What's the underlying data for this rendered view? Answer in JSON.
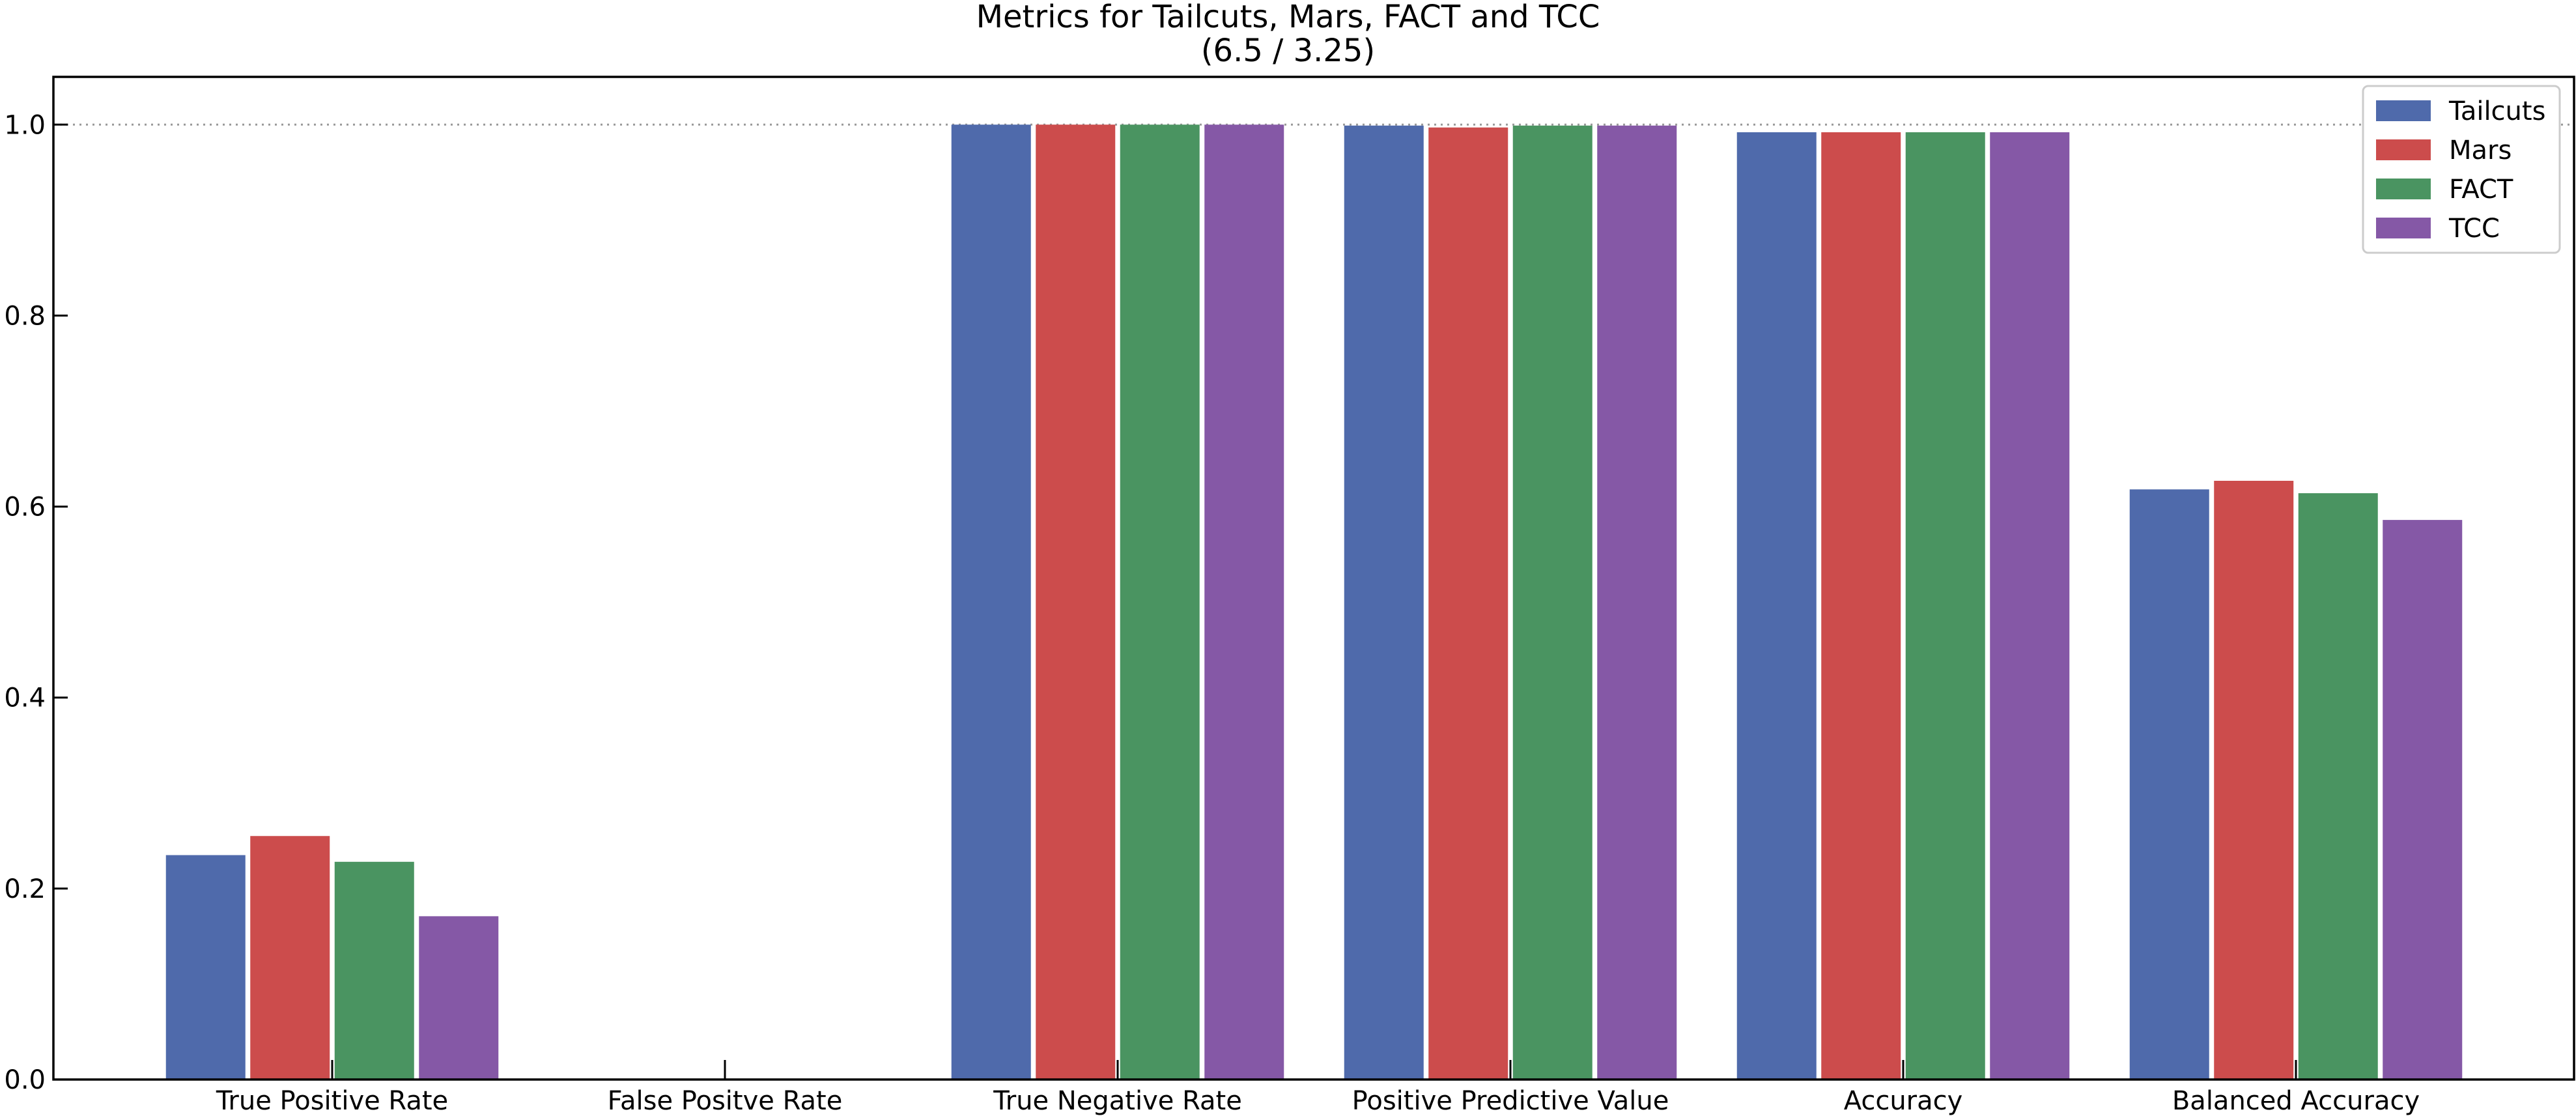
{
  "chart_data": {
    "type": "bar",
    "title": "Metrics for Tailcuts, Mars, FACT and TCC",
    "subtitle": "(6.5 / 3.25)",
    "xlabel": "",
    "ylabel": "",
    "ylim": [
      0,
      1.05
    ],
    "yticks": [
      "0.0",
      "0.2",
      "0.4",
      "0.6",
      "0.8",
      "1.0"
    ],
    "ytick_values": [
      0,
      0.2,
      0.4,
      0.6,
      0.8,
      1.0
    ],
    "reference_line": 1.0,
    "grid": false,
    "legend_position": "top-right",
    "categories": [
      "True Positive Rate",
      "False Positve Rate",
      "True Negative Rate",
      "Positive Predictive Value",
      "Accuracy",
      "Balanced Accuracy"
    ],
    "series": [
      {
        "name": "Tailcuts",
        "color": "#4f6aab",
        "values": [
          0.235,
          0.0,
          1.0,
          0.999,
          0.992,
          0.618
        ]
      },
      {
        "name": "Mars",
        "color": "#cc4c4c",
        "values": [
          0.255,
          0.0,
          1.0,
          0.997,
          0.992,
          0.627
        ]
      },
      {
        "name": "FACT",
        "color": "#4a9461",
        "values": [
          0.228,
          0.0,
          1.0,
          0.999,
          0.992,
          0.614
        ]
      },
      {
        "name": "TCC",
        "color": "#8558a6",
        "values": [
          0.171,
          0.0,
          1.0,
          0.999,
          0.992,
          0.586
        ]
      }
    ]
  }
}
